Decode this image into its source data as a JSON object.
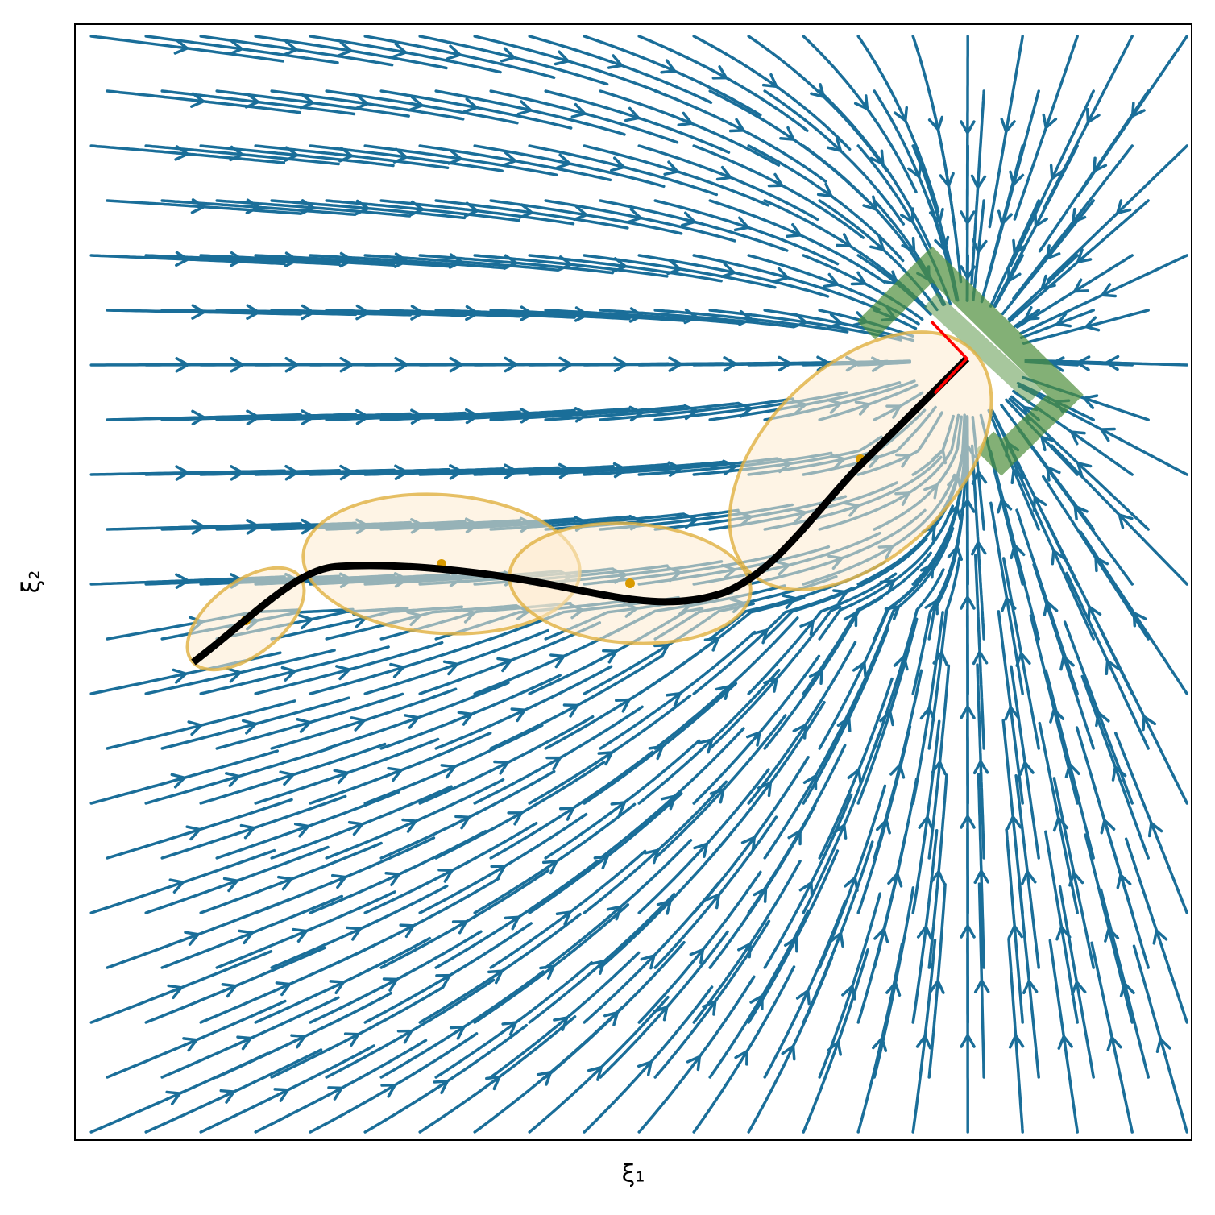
{
  "chart_data": {
    "type": "streamplot",
    "x_label": "ξ₁",
    "y_label": "ξ₂"
  }
}
